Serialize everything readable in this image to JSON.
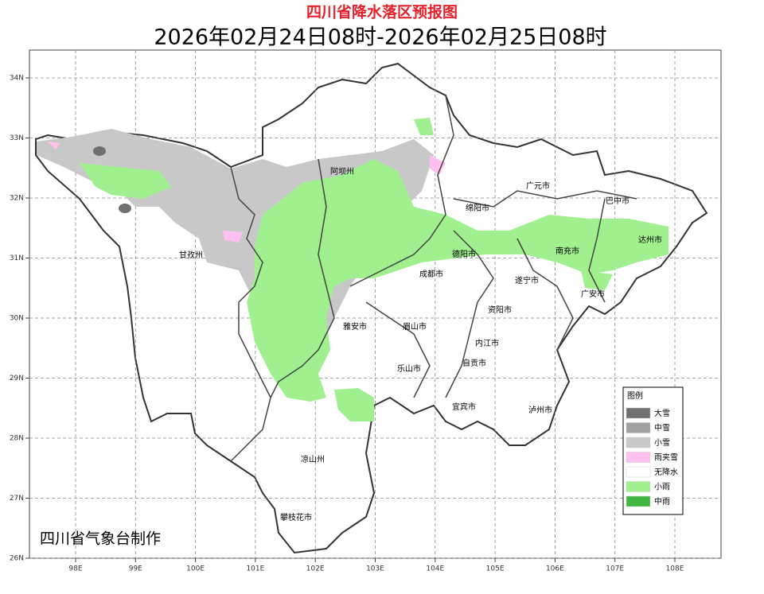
{
  "title": "四川省降水落区预报图",
  "subtitle": "2026年02月24日08时-2026年02月25日08时",
  "footer": "四川省气象台制作",
  "map": {
    "grid": true,
    "lon_ticks": [
      {
        "value": 98,
        "label": "98E"
      },
      {
        "value": 99,
        "label": "99E"
      },
      {
        "value": 100,
        "label": "100E"
      },
      {
        "value": 101,
        "label": "101E"
      },
      {
        "value": 102,
        "label": "102E"
      },
      {
        "value": 103,
        "label": "103E"
      },
      {
        "value": 104,
        "label": "104E"
      },
      {
        "value": 105,
        "label": "105E"
      },
      {
        "value": 106,
        "label": "106E"
      },
      {
        "value": 107,
        "label": "107E"
      },
      {
        "value": 108,
        "label": "108E"
      }
    ],
    "lat_ticks": [
      {
        "value": 34,
        "label": "34N"
      },
      {
        "value": 33,
        "label": "33N"
      },
      {
        "value": 32,
        "label": "32N"
      },
      {
        "value": 31,
        "label": "31N"
      },
      {
        "value": 30,
        "label": "30N"
      },
      {
        "value": 29,
        "label": "29N"
      },
      {
        "value": 28,
        "label": "28N"
      },
      {
        "value": 27,
        "label": "27N"
      },
      {
        "value": 26,
        "label": "26N"
      }
    ],
    "cities": [
      "阿坝州",
      "广元市",
      "巴中市",
      "绵阳市",
      "达州市",
      "甘孜州",
      "德阳市",
      "南充市",
      "成都市",
      "遂宁市",
      "广安市",
      "资阳市",
      "雅安市",
      "眉山市",
      "内江市",
      "自贡市",
      "乐山市",
      "宜宾市",
      "泸州市",
      "凉山州",
      "攀枝花市"
    ]
  },
  "legend": {
    "title": "图例",
    "items": [
      {
        "label": "大雪",
        "color": "#707070"
      },
      {
        "label": "中雪",
        "color": "#a0a0a0"
      },
      {
        "label": "小雪",
        "color": "#c8c8c8"
      },
      {
        "label": "雨夹雪",
        "color": "#ffc0f0"
      },
      {
        "label": "无降水",
        "color": "#ffffff"
      },
      {
        "label": "小雨",
        "color": "#a0f090"
      },
      {
        "label": "中雨",
        "color": "#40b840"
      }
    ]
  }
}
